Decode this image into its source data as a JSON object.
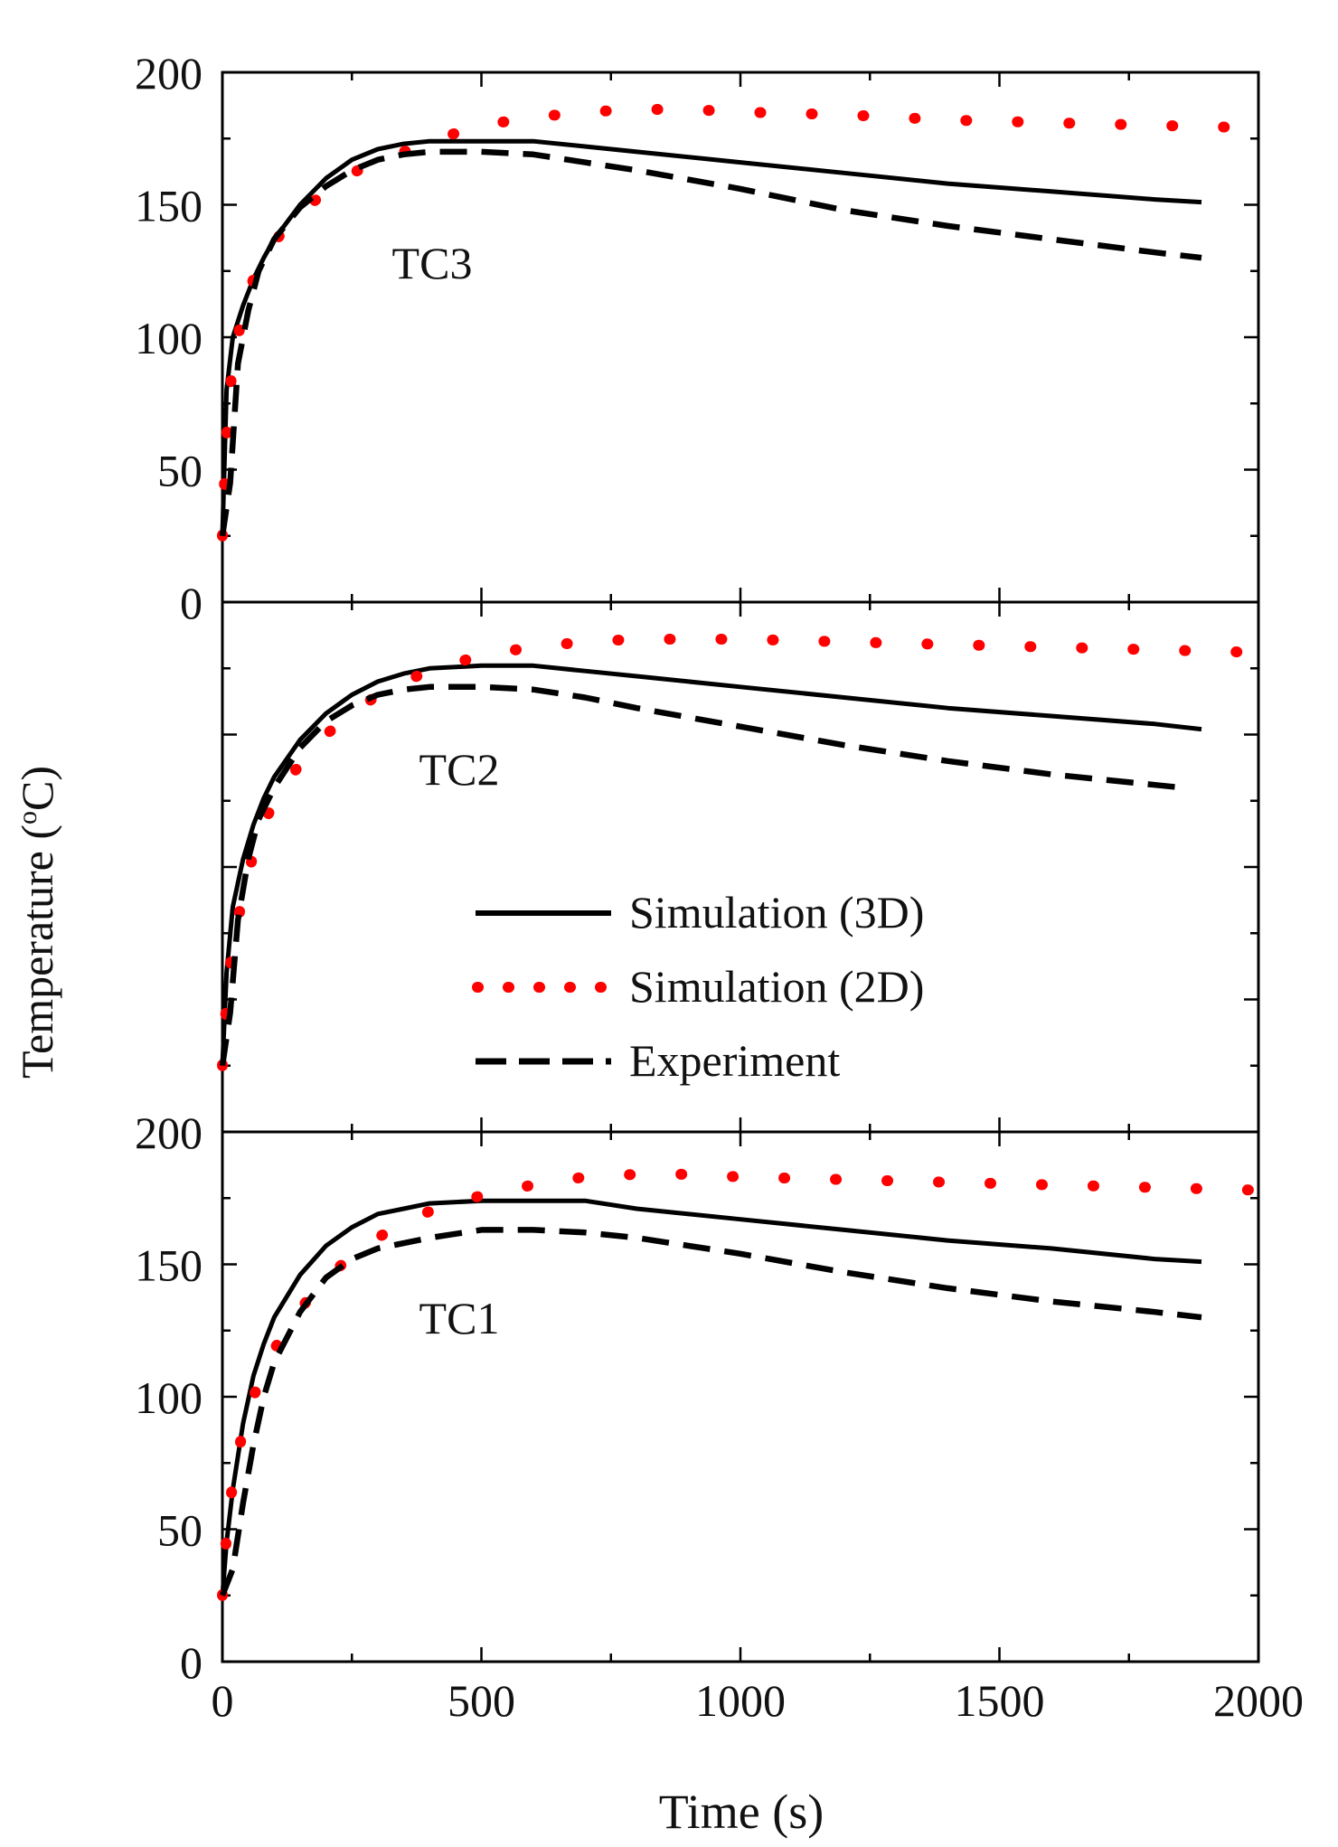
{
  "figure": {
    "ylabel_main": "Temperature (",
    "ylabel_sup": "o",
    "ylabel_unit": "C)",
    "xlabel": "Time (s)"
  },
  "legend": {
    "items": [
      {
        "label": "Simulation (3D)",
        "style": "solid",
        "color": "#000000"
      },
      {
        "label": "Simulation (2D)",
        "style": "dotted",
        "color": "#ff0000"
      },
      {
        "label": "Experiment",
        "style": "dashed",
        "color": "#000000"
      }
    ]
  },
  "chart_data": [
    {
      "type": "line",
      "title": "TC3",
      "xlabel": "Time (s)",
      "ylabel": "Temperature (oC)",
      "xlim": [
        0,
        2000
      ],
      "ylim": [
        0,
        200
      ],
      "x_ticks": [
        "0",
        "500",
        "1000",
        "1500",
        "2000"
      ],
      "y_ticks": [
        "0",
        "50",
        "100",
        "150",
        "200"
      ],
      "series": [
        {
          "name": "Simulation (3D)",
          "x": [
            0,
            8,
            20,
            40,
            60,
            80,
            100,
            150,
            200,
            250,
            300,
            350,
            400,
            500,
            600,
            700,
            800,
            1000,
            1200,
            1400,
            1600,
            1800,
            1890
          ],
          "y": [
            25,
            80,
            100,
            112,
            122,
            130,
            137,
            150,
            160,
            167,
            171,
            173,
            174,
            174,
            174,
            172,
            170,
            166,
            162,
            158,
            155,
            152,
            151
          ]
        },
        {
          "name": "Simulation (2D)",
          "x": [
            0,
            5,
            10,
            20,
            40,
            60,
            80,
            100,
            150,
            200,
            250,
            300,
            350,
            400,
            500,
            600,
            700,
            800,
            900,
            1000,
            1200,
            1400,
            1600,
            1800,
            2000
          ],
          "y": [
            25,
            50,
            70,
            90,
            110,
            122,
            130,
            136,
            147,
            155,
            162,
            166,
            170,
            174,
            180,
            183,
            185,
            186,
            186,
            185,
            184,
            182,
            181,
            180,
            179
          ]
        },
        {
          "name": "Experiment",
          "x": [
            0,
            15,
            30,
            50,
            70,
            100,
            150,
            200,
            250,
            300,
            350,
            400,
            500,
            600,
            700,
            800,
            1000,
            1200,
            1400,
            1600,
            1800,
            1890
          ],
          "y": [
            25,
            45,
            90,
            110,
            125,
            137,
            149,
            157,
            163,
            167,
            169,
            170,
            170,
            169,
            166,
            163,
            156,
            148,
            142,
            137,
            132,
            130
          ]
        }
      ]
    },
    {
      "type": "line",
      "title": "TC2",
      "xlabel": "Time (s)",
      "ylabel": "Temperature (oC)",
      "xlim": [
        0,
        2000
      ],
      "ylim": [
        0,
        200
      ],
      "x_ticks": [],
      "y_ticks": [],
      "series": [
        {
          "name": "Simulation (3D)",
          "x": [
            0,
            8,
            20,
            40,
            60,
            80,
            100,
            150,
            200,
            250,
            300,
            350,
            400,
            500,
            600,
            700,
            800,
            1000,
            1200,
            1400,
            1600,
            1800,
            1890
          ],
          "y": [
            25,
            60,
            85,
            103,
            116,
            126,
            134,
            148,
            158,
            165,
            170,
            173,
            175,
            176,
            176,
            174,
            172,
            168,
            164,
            160,
            157,
            154,
            152
          ]
        },
        {
          "name": "Simulation (2D)",
          "x": [
            0,
            5,
            10,
            20,
            40,
            60,
            80,
            100,
            150,
            200,
            250,
            300,
            350,
            400,
            500,
            600,
            700,
            800,
            900,
            1000,
            1200,
            1400,
            1600,
            1800,
            2000
          ],
          "y": [
            25,
            40,
            55,
            70,
            90,
            105,
            116,
            125,
            139,
            150,
            158,
            165,
            170,
            174,
            180,
            183,
            185,
            186,
            186,
            186,
            185,
            184,
            183,
            182,
            181
          ]
        },
        {
          "name": "Experiment",
          "x": [
            0,
            15,
            30,
            50,
            70,
            100,
            150,
            200,
            250,
            300,
            350,
            400,
            500,
            600,
            700,
            800,
            1000,
            1200,
            1400,
            1600,
            1800,
            1850
          ],
          "y": [
            25,
            45,
            80,
            103,
            118,
            130,
            145,
            155,
            161,
            165,
            167,
            168,
            168,
            167,
            164,
            160,
            153,
            146,
            140,
            135,
            131,
            130
          ]
        }
      ]
    },
    {
      "type": "line",
      "title": "TC1",
      "xlabel": "Time (s)",
      "ylabel": "Temperature (oC)",
      "xlim": [
        0,
        2000
      ],
      "ylim": [
        0,
        200
      ],
      "x_ticks": [
        "0",
        "500",
        "1000",
        "1500",
        "2000"
      ],
      "y_ticks": [
        "0",
        "50",
        "100",
        "150",
        "200"
      ],
      "series": [
        {
          "name": "Simulation (3D)",
          "x": [
            0,
            8,
            20,
            40,
            60,
            80,
            100,
            150,
            200,
            250,
            300,
            350,
            400,
            500,
            600,
            700,
            800,
            1000,
            1200,
            1400,
            1600,
            1800,
            1890
          ],
          "y": [
            25,
            45,
            65,
            90,
            108,
            120,
            130,
            146,
            157,
            164,
            169,
            171,
            173,
            174,
            174,
            174,
            171,
            167,
            163,
            159,
            156,
            152,
            151
          ]
        },
        {
          "name": "Simulation (2D)",
          "x": [
            0,
            8,
            20,
            40,
            60,
            80,
            100,
            150,
            200,
            250,
            300,
            350,
            400,
            500,
            600,
            700,
            800,
            900,
            1000,
            1200,
            1400,
            1600,
            1800,
            2000
          ],
          "y": [
            25,
            48,
            68,
            88,
            100,
            110,
            118,
            133,
            145,
            153,
            160,
            166,
            170,
            176,
            180,
            183,
            184,
            184,
            183,
            182,
            181,
            180,
            179,
            178
          ]
        },
        {
          "name": "Experiment",
          "x": [
            0,
            20,
            40,
            60,
            80,
            100,
            150,
            200,
            250,
            300,
            400,
            500,
            600,
            700,
            800,
            1000,
            1200,
            1400,
            1600,
            1800,
            1890
          ],
          "y": [
            25,
            35,
            60,
            82,
            100,
            113,
            132,
            145,
            152,
            156,
            160,
            163,
            163,
            162,
            160,
            154,
            147,
            141,
            136,
            132,
            130
          ]
        }
      ]
    }
  ]
}
